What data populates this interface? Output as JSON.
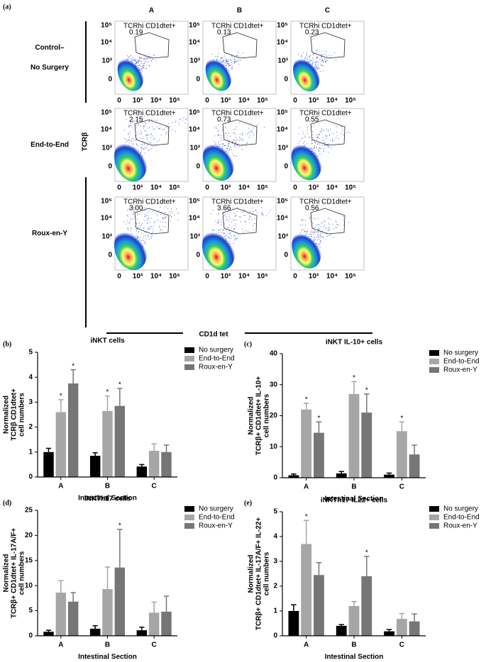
{
  "flow": {
    "panel": "(a)",
    "columns": [
      "A",
      "B",
      "C"
    ],
    "rows": [
      {
        "label": [
          "Control–",
          "No Surgery"
        ]
      },
      {
        "label": [
          "End-to-End"
        ]
      },
      {
        "label": [
          "Roux-en-Y"
        ]
      }
    ],
    "gate": "TCRhi CD1dtet+",
    "percent": [
      [
        "0.19",
        "0.13",
        "0.23"
      ],
      [
        "2.15",
        "0.73",
        "0.55"
      ],
      [
        "3.00",
        "3.66",
        "0.56"
      ]
    ],
    "yaxis": "TCRβ",
    "xaxis": "CD1d tet",
    "ticks": [
      "0",
      "10³",
      "10⁴",
      "10⁵"
    ]
  },
  "chart_data": [
    {
      "type": "bar",
      "panel": "(b)",
      "title": "iNKT cells",
      "ylabel": [
        "Normalized",
        "TCRβ  CD1dtet+",
        "cell numbers"
      ],
      "xlabel": "Intestinal Section",
      "categories": [
        "A",
        "B",
        "C"
      ],
      "ylim": [
        0,
        5
      ],
      "yticks": [
        0,
        1,
        2,
        3,
        4,
        5
      ],
      "series": [
        {
          "name": "No surgery",
          "color": "#000000",
          "values": [
            1.0,
            0.85,
            0.42
          ],
          "errors": [
            0.15,
            0.12,
            0.08
          ],
          "annotations": [
            null,
            null,
            null
          ]
        },
        {
          "name": "End-to-End",
          "color": "#a6a6a6",
          "values": [
            2.6,
            2.65,
            1.05
          ],
          "errors": [
            0.5,
            0.6,
            0.28
          ],
          "annotations": [
            "*",
            "*",
            null
          ]
        },
        {
          "name": "Roux-en-Y",
          "color": "#767676",
          "values": [
            3.75,
            2.85,
            1.0
          ],
          "errors": [
            0.55,
            0.7,
            0.28
          ],
          "annotations": [
            "*",
            "*",
            null
          ]
        }
      ]
    },
    {
      "type": "bar",
      "panel": "(c)",
      "title": "iNKT IL-10+ cells",
      "ylabel": [
        "Normalized",
        "TCRβ+ CD1dtet+ IL-10+",
        "cell numbers"
      ],
      "xlabel": "Intestinal Section",
      "categories": [
        "A",
        "B",
        "C"
      ],
      "ylim": [
        0,
        40
      ],
      "yticks": [
        0,
        10,
        20,
        30,
        40
      ],
      "series": [
        {
          "name": "No surgery",
          "color": "#000000",
          "values": [
            0.8,
            1.4,
            1.0
          ],
          "errors": [
            0.4,
            0.6,
            0.5
          ],
          "annotations": [
            null,
            null,
            null
          ]
        },
        {
          "name": "End-to-End",
          "color": "#a6a6a6",
          "values": [
            22,
            27,
            15
          ],
          "errors": [
            2,
            4,
            3
          ],
          "annotations": [
            "*",
            "*",
            "*"
          ]
        },
        {
          "name": "Roux-en-Y",
          "color": "#767676",
          "values": [
            14.5,
            21,
            7.5
          ],
          "errors": [
            3.5,
            6,
            3
          ],
          "annotations": [
            "*",
            "*",
            null
          ]
        }
      ]
    },
    {
      "type": "bar",
      "panel": "(d)",
      "title": "iNKTh17 cells",
      "ylabel": [
        "Normalized",
        "TCRβ+ CD1dtet+ IL-17A/F+",
        "cell numbers"
      ],
      "xlabel": "Intestinal Section",
      "categories": [
        "A",
        "B",
        "C"
      ],
      "ylim": [
        0,
        25
      ],
      "yticks": [
        0,
        5,
        10,
        15,
        20,
        25
      ],
      "series": [
        {
          "name": "No surgery",
          "color": "#000000",
          "values": [
            0.8,
            1.4,
            1.1
          ],
          "errors": [
            0.3,
            0.6,
            0.6
          ],
          "annotations": [
            null,
            null,
            null
          ]
        },
        {
          "name": "End-to-End",
          "color": "#a6a6a6",
          "values": [
            8.6,
            9.3,
            4.6
          ],
          "errors": [
            2.4,
            4.4,
            2.1
          ],
          "annotations": [
            null,
            null,
            null
          ]
        },
        {
          "name": "Roux-en-Y",
          "color": "#767676",
          "values": [
            6.8,
            13.6,
            4.8
          ],
          "errors": [
            1.8,
            7.6,
            3.1
          ],
          "annotations": [
            null,
            "*",
            null
          ]
        }
      ]
    },
    {
      "type": "bar",
      "panel": "(e)",
      "title": "iNKTh17 IL22+ cells",
      "ylabel": [
        "Normalized",
        "TCRβ+ CD1dtet+ IL-17A/F+ IL-22+",
        "cell numbers"
      ],
      "xlabel": "Intestinal Section",
      "categories": [
        "A",
        "B",
        "C"
      ],
      "ylim": [
        0,
        5
      ],
      "yticks": [
        0,
        1,
        2,
        3,
        4,
        5
      ],
      "series": [
        {
          "name": "No surgery",
          "color": "#000000",
          "values": [
            1.0,
            0.4,
            0.18
          ],
          "errors": [
            0.25,
            0.05,
            0.07
          ],
          "annotations": [
            null,
            null,
            null
          ]
        },
        {
          "name": "End-to-End",
          "color": "#a6a6a6",
          "values": [
            3.7,
            1.2,
            0.68
          ],
          "errors": [
            0.95,
            0.18,
            0.22
          ],
          "annotations": [
            "*",
            null,
            null
          ]
        },
        {
          "name": "Roux-en-Y",
          "color": "#767676",
          "values": [
            2.45,
            2.4,
            0.58
          ],
          "errors": [
            0.5,
            0.8,
            0.3
          ],
          "annotations": [
            null,
            "*",
            null
          ]
        }
      ]
    }
  ]
}
